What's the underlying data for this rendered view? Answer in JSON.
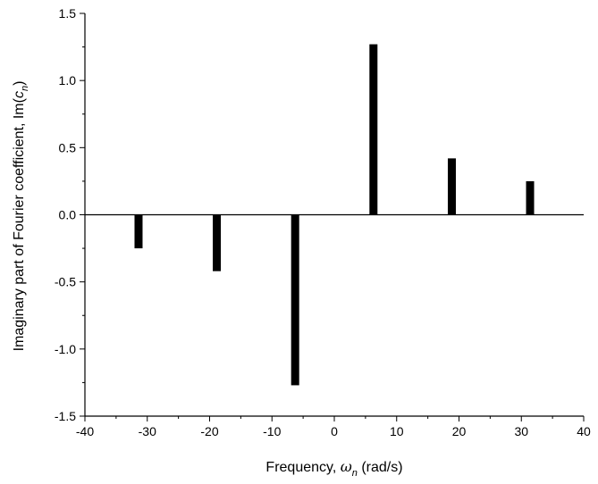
{
  "chart_data": {
    "type": "bar",
    "title": "",
    "xlabel": {
      "prefix": "Frequency, ",
      "symbol": "ω",
      "subscript": "n",
      "suffix": " (rad/s)"
    },
    "ylabel": {
      "prefix": "Imaginary part of Fourier coefficient, Im(",
      "symbol": "c",
      "subscript": "n",
      "suffix": ")"
    },
    "xlim": [
      -40,
      40
    ],
    "ylim": [
      -1.5,
      1.5
    ],
    "xticks": [
      -40,
      -30,
      -20,
      -10,
      0,
      10,
      20,
      30,
      40
    ],
    "xtick_labels": [
      "-40",
      "-30",
      "-20",
      "-10",
      "0",
      "10",
      "20",
      "30",
      "40"
    ],
    "yticks": [
      -1.5,
      -1.0,
      -0.5,
      0.0,
      0.5,
      1.0,
      1.5
    ],
    "ytick_labels": [
      "-1.5",
      "-1.0",
      "-0.5",
      "0.0",
      "0.5",
      "1.0",
      "1.5"
    ],
    "grid": false,
    "bar_color": "#000000",
    "x": [
      -31.4,
      -18.85,
      -6.28,
      6.28,
      18.85,
      31.4
    ],
    "values": [
      -0.25,
      -0.42,
      -1.27,
      1.27,
      0.42,
      0.25
    ]
  }
}
